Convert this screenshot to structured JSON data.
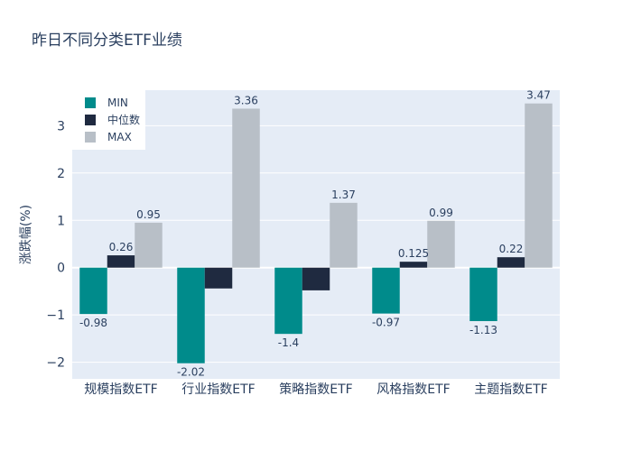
{
  "chart_data": {
    "type": "bar",
    "title": "昨日不同分类ETF业绩",
    "ylabel": "涨跌幅(%)",
    "xlabel": "",
    "categories": [
      "规模指数ETF",
      "行业指数ETF",
      "策略指数ETF",
      "风格指数ETF",
      "主题指数ETF"
    ],
    "series": [
      {
        "name": "MIN",
        "values": [
          -0.98,
          -2.02,
          -1.4,
          -0.97,
          -1.13
        ],
        "labels": [
          "-0.98",
          "-2.02",
          "-1.4",
          "-0.97",
          "-1.13"
        ],
        "color": "#008b8b"
      },
      {
        "name": "中位数",
        "values": [
          0.26,
          -0.44,
          -0.48,
          0.125,
          0.22
        ],
        "labels": [
          "0.26",
          "",
          "",
          "0.125",
          "0.22"
        ],
        "color": "#1f2a40"
      },
      {
        "name": "MAX",
        "values": [
          0.95,
          3.36,
          1.37,
          0.99,
          3.47
        ],
        "labels": [
          "0.95",
          "3.36",
          "1.37",
          "0.99",
          "3.47"
        ],
        "color": "#b8bfc7"
      }
    ],
    "ylim": [
      -2.35,
      3.75
    ],
    "yticks": [
      3,
      2,
      1,
      0,
      -1,
      -2
    ],
    "ytick_labels": [
      "3",
      "2",
      "1",
      "0",
      "−1",
      "−2"
    ],
    "grid": true,
    "legend_position": "top-left",
    "colors": {
      "plot_bg": "#e5ecf6",
      "grid": "#ffffff",
      "text": "#2a3f5f"
    }
  }
}
